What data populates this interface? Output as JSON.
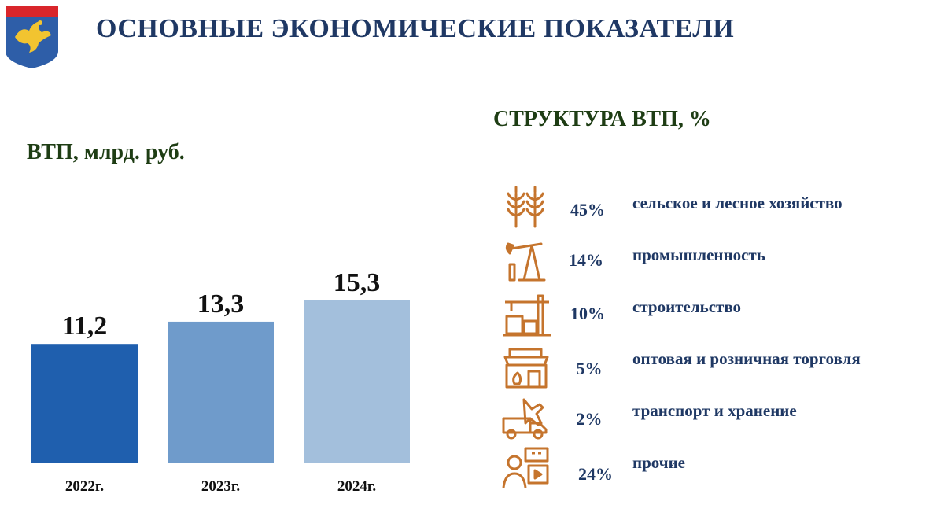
{
  "header": {
    "title": "ОСНОВНЫЕ ЭКОНОМИЧЕСКИЕ ПОКАЗАТЕЛИ",
    "emblem": "coat-of-arms-icon",
    "colors": {
      "title": "#1f3864",
      "emblem_blue": "#2e5ea8",
      "emblem_red": "#d9262b",
      "emblem_gold": "#f2c430"
    }
  },
  "chart_data": {
    "type": "bar",
    "title": "ВТП, млрд. руб.",
    "categories": [
      "2022г.",
      "2023г.",
      "2024г."
    ],
    "values": [
      11.2,
      13.3,
      15.3
    ],
    "value_labels": [
      "11,2",
      "13,3",
      "15,3"
    ],
    "bar_colors": [
      "#1f5fae",
      "#6f9bcb",
      "#a3bfdc"
    ],
    "xlabel": "",
    "ylabel": "",
    "ylim": [
      0,
      17.5
    ],
    "grid": false,
    "legend": "none"
  },
  "structure": {
    "title": "СТРУКТУРА ВТП, %",
    "icon_color": "#c5742d",
    "items": [
      {
        "percent": "45%",
        "label": "сельское и лесное хозяйство",
        "icon": "wheat-icon"
      },
      {
        "percent": "14%",
        "label": "промышленность",
        "icon": "oil-pump-icon"
      },
      {
        "percent": "10%",
        "label": "строительство",
        "icon": "crane-icon"
      },
      {
        "percent": "5%",
        "label": "оптовая и розничная торговля",
        "icon": "shop-icon"
      },
      {
        "percent": "2%",
        "label": "транспорт и хранение",
        "icon": "truck-plane-icon"
      },
      {
        "percent": "24%",
        "label": "прочие",
        "icon": "services-icon"
      }
    ]
  }
}
